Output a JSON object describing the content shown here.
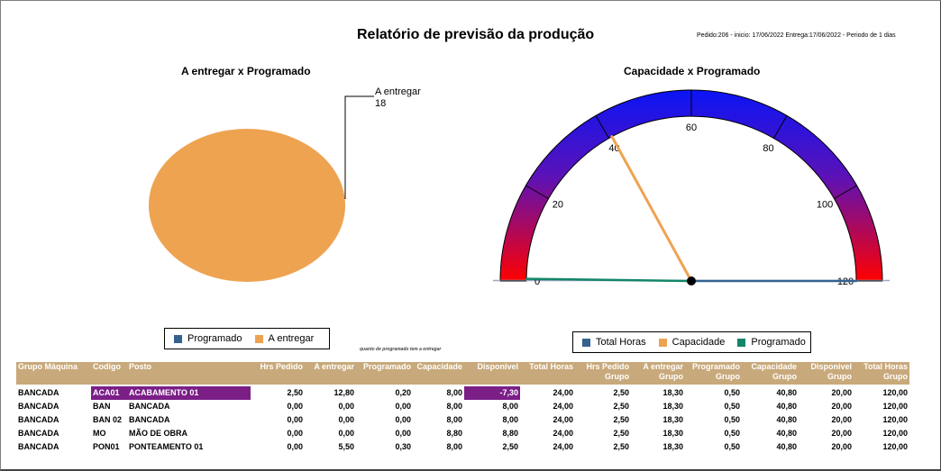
{
  "report": {
    "title": "Relatório de previsão da produção",
    "meta": "Pedido:206 - inicio: 17/06/2022 Entrega:17/06/2022 - Periodo de 1 dias"
  },
  "pie_chart": {
    "title": "A entregar x Programado",
    "label_name": "A entregar",
    "label_value": "18",
    "legend": [
      {
        "name": "Programado",
        "color": "#33628f"
      },
      {
        "name": "A entregar",
        "color": "#eea351"
      }
    ],
    "note": "quanto de programado tem a entregar"
  },
  "gauge_chart": {
    "title": "Capacidade x Programado",
    "ticks": [
      "0",
      "20",
      "40",
      "60",
      "80",
      "100",
      "120"
    ],
    "legend": [
      {
        "name": "Total Horas",
        "color": "#33628f"
      },
      {
        "name": "Capacidade",
        "color": "#eea351"
      },
      {
        "name": "Programado",
        "color": "#13866a"
      }
    ]
  },
  "chart_data": [
    {
      "type": "pie",
      "title": "A entregar x Programado",
      "slices": [
        {
          "name": "Programado",
          "value": 0,
          "color": "#33628f"
        },
        {
          "name": "A entregar",
          "value": 18,
          "color": "#eea351"
        }
      ]
    },
    {
      "type": "gauge",
      "title": "Capacidade x Programado",
      "range": [
        0,
        120
      ],
      "tick_step": 20,
      "needles": [
        {
          "name": "Total Horas",
          "value": 120,
          "color": "#33628f"
        },
        {
          "name": "Capacidade",
          "value": 40.8,
          "color": "#eea351"
        },
        {
          "name": "Programado",
          "value": 0.5,
          "color": "#13866a"
        }
      ]
    }
  ],
  "table": {
    "headers": [
      [
        "Grupo Máquina",
        ""
      ],
      [
        "Codigo",
        ""
      ],
      [
        "Posto",
        ""
      ],
      [
        "Hrs Pedido",
        ""
      ],
      [
        "A entregar",
        ""
      ],
      [
        "Programado",
        ""
      ],
      [
        "Capacidade",
        ""
      ],
      [
        "Disponivel",
        ""
      ],
      [
        "Total Horas",
        ""
      ],
      [
        "Hrs Pedido",
        "Grupo"
      ],
      [
        "A entregar",
        "Grupo"
      ],
      [
        "Programado",
        "Grupo"
      ],
      [
        "Capacidade",
        "Grupo"
      ],
      [
        "Disponivel",
        "Grupo"
      ],
      [
        "Total Horas",
        "Grupo"
      ]
    ],
    "rows": [
      [
        "BANCADA",
        "ACA01",
        "ACABAMENTO 01",
        "2,50",
        "12,80",
        "0,20",
        "8,00",
        "-7,30",
        "24,00",
        "2,50",
        "18,30",
        "0,50",
        "40,80",
        "20,00",
        "120,00"
      ],
      [
        "BANCADA",
        "BAN",
        "BANCADA",
        "0,00",
        "0,00",
        "0,00",
        "8,00",
        "8,00",
        "24,00",
        "2,50",
        "18,30",
        "0,50",
        "40,80",
        "20,00",
        "120,00"
      ],
      [
        "BANCADA",
        "BAN 02",
        "BANCADA",
        "0,00",
        "0,00",
        "0,00",
        "8,00",
        "8,00",
        "24,00",
        "2,50",
        "18,30",
        "0,50",
        "40,80",
        "20,00",
        "120,00"
      ],
      [
        "BANCADA",
        "MO",
        "MÃO DE OBRA",
        "0,00",
        "0,00",
        "0,00",
        "8,80",
        "8,80",
        "24,00",
        "2,50",
        "18,30",
        "0,50",
        "40,80",
        "20,00",
        "120,00"
      ],
      [
        "BANCADA",
        "PON01",
        "PONTEAMENTO 01",
        "0,00",
        "5,50",
        "0,30",
        "8,00",
        "2,50",
        "24,00",
        "2,50",
        "18,30",
        "0,50",
        "40,80",
        "20,00",
        "120,00"
      ]
    ],
    "highlight_color": "#7b1f87"
  }
}
